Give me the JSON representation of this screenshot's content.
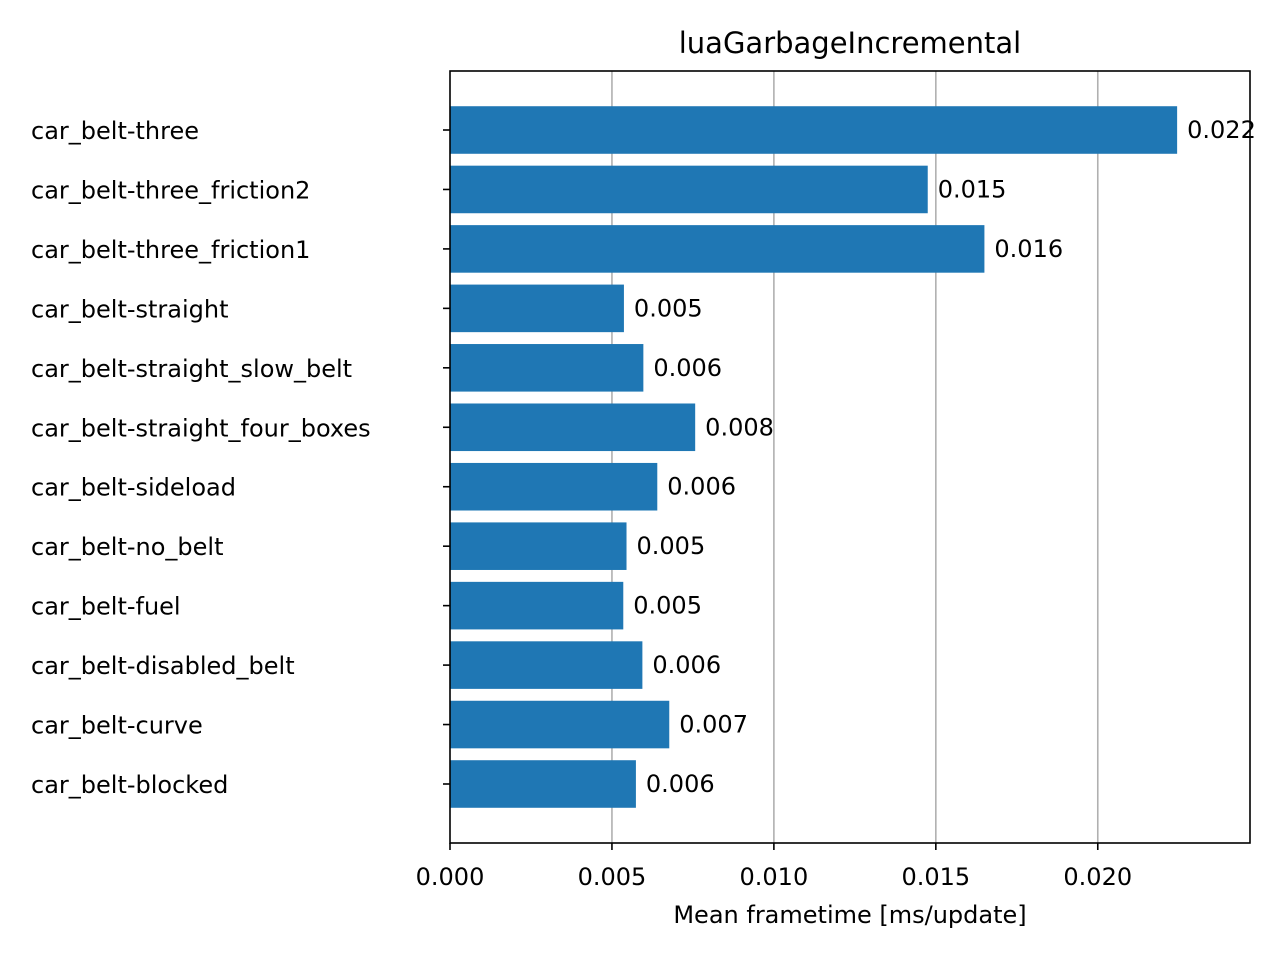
{
  "chart_data": {
    "type": "bar",
    "orientation": "horizontal",
    "title": "luaGarbageIncremental",
    "xlabel": "Mean frametime [ms/update]",
    "ylabel": "",
    "xlim": [
      0,
      0.0247
    ],
    "xticks": [
      0.0,
      0.005,
      0.01,
      0.015,
      0.02
    ],
    "xtick_labels": [
      "0.000",
      "0.005",
      "0.010",
      "0.015",
      "0.020"
    ],
    "grid": "vertical",
    "bar_color": "#1f77b4",
    "categories": [
      "car_belt-three",
      "car_belt-three_friction2",
      "car_belt-three_friction1",
      "car_belt-straight",
      "car_belt-straight_slow_belt",
      "car_belt-straight_four_boxes",
      "car_belt-sideload",
      "car_belt-no_belt",
      "car_belt-fuel",
      "car_belt-disabled_belt",
      "car_belt-curve",
      "car_belt-blocked"
    ],
    "values": [
      0.02245,
      0.01475,
      0.0165,
      0.00537,
      0.00597,
      0.00757,
      0.0064,
      0.00545,
      0.00535,
      0.00594,
      0.00677,
      0.00574
    ],
    "value_labels": [
      "0.022",
      "0.015",
      "0.016",
      "0.005",
      "0.006",
      "0.008",
      "0.006",
      "0.005",
      "0.005",
      "0.006",
      "0.007",
      "0.006"
    ]
  }
}
